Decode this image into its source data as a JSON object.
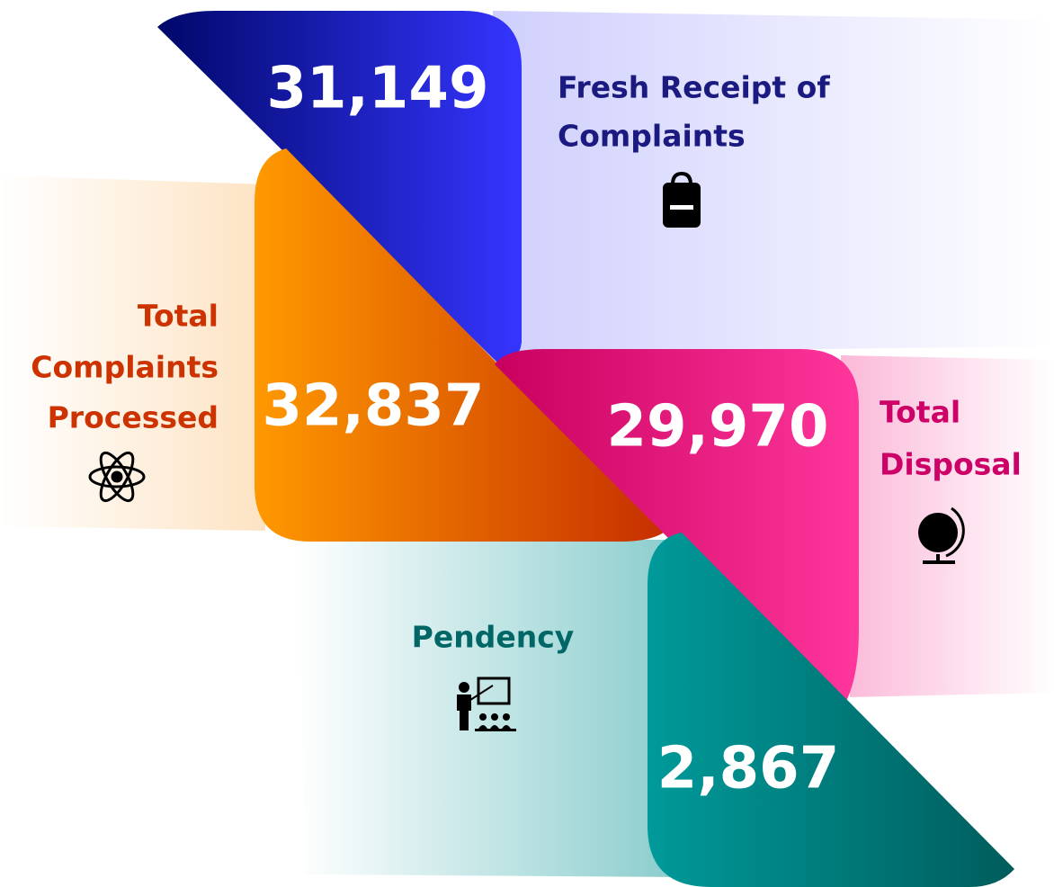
{
  "items": [
    {
      "value": "31,149",
      "label": [
        "Fresh Receipt of",
        "Complaints"
      ]
    },
    {
      "value": "32,837",
      "label": [
        "Total",
        "Complaints",
        "Processed"
      ]
    },
    {
      "value": "29,970",
      "label": [
        "Total",
        "Disposal"
      ]
    },
    {
      "value": "2,867",
      "label": [
        "Pendency"
      ]
    }
  ]
}
